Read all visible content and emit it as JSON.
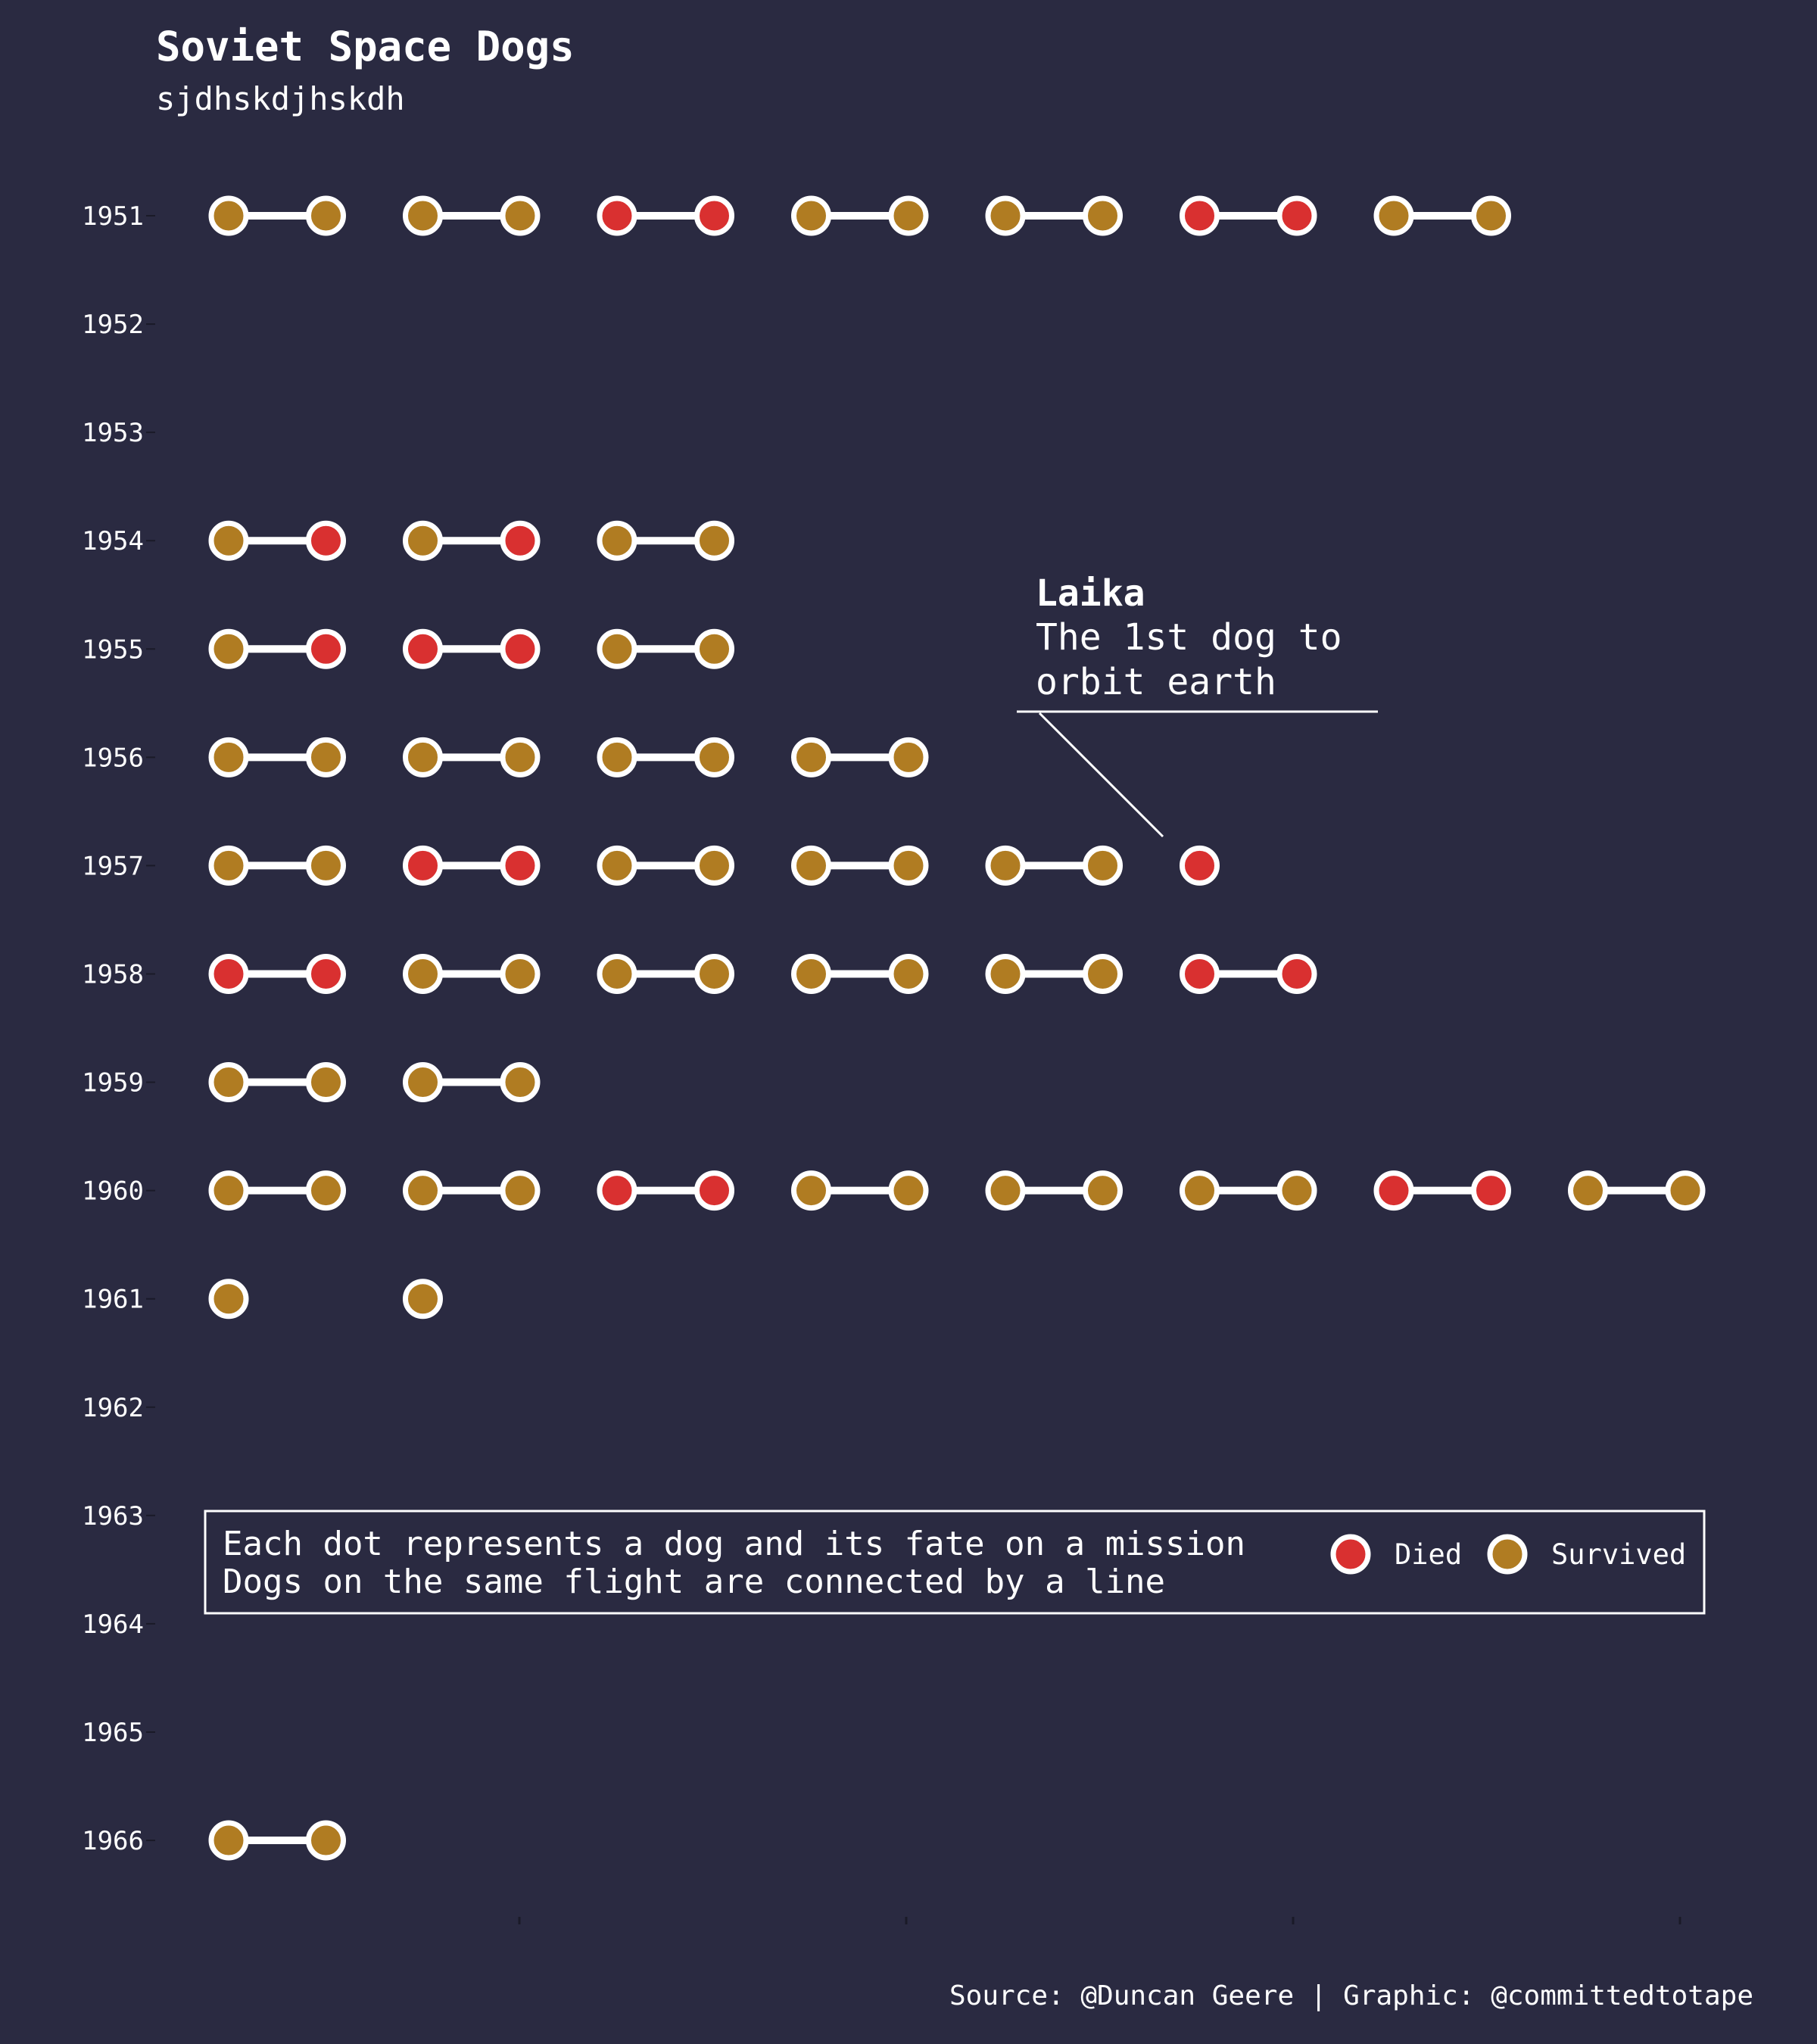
{
  "title": "Soviet Space Dogs",
  "subtitle": "sjdhskdjhskdh",
  "caption": "Source: @Duncan Geere | Graphic: @committedtotape",
  "colors": {
    "background": "#2a2a41",
    "died": "#d93030",
    "survived": "#b07c22",
    "outline": "#ffffff",
    "text": "#ffffff"
  },
  "annotation": {
    "title": "Laika",
    "line1": "The 1st dog to",
    "line2": "orbit earth",
    "target": {
      "year": 1957,
      "flight": 6,
      "dog": 0
    }
  },
  "legend": {
    "line1": "Each dot represents a dog and its fate on a mission",
    "line2": "Dogs on the same flight are connected by a line",
    "died_label": "Died",
    "survived_label": "Survived"
  },
  "chart_data": {
    "type": "scatter",
    "y_label": "",
    "x_label": "",
    "years": [
      1951,
      1952,
      1953,
      1954,
      1955,
      1956,
      1957,
      1958,
      1959,
      1960,
      1961,
      1962,
      1963,
      1964,
      1965,
      1966
    ],
    "flights_by_year": {
      "1951": [
        [
          "S",
          "S"
        ],
        [
          "S",
          "S"
        ],
        [
          "D",
          "D"
        ],
        [
          "S",
          "S"
        ],
        [
          "S",
          "S"
        ],
        [
          "D",
          "D"
        ],
        [
          "S",
          "S"
        ]
      ],
      "1952": [],
      "1953": [],
      "1954": [
        [
          "S",
          "D"
        ],
        [
          "S",
          "D"
        ],
        [
          "S",
          "S"
        ]
      ],
      "1955": [
        [
          "S",
          "D"
        ],
        [
          "D",
          "D"
        ],
        [
          "S",
          "S"
        ]
      ],
      "1956": [
        [
          "S",
          "S"
        ],
        [
          "S",
          "S"
        ],
        [
          "S",
          "S"
        ],
        [
          "S",
          "S"
        ]
      ],
      "1957": [
        [
          "S",
          "S"
        ],
        [
          "D",
          "D"
        ],
        [
          "S",
          "S"
        ],
        [
          "S",
          "S"
        ],
        [
          "S",
          "S"
        ],
        [
          "D"
        ]
      ],
      "1958": [
        [
          "D",
          "D"
        ],
        [
          "S",
          "S"
        ],
        [
          "S",
          "S"
        ],
        [
          "S",
          "S"
        ],
        [
          "S",
          "S"
        ],
        [
          "D",
          "D"
        ]
      ],
      "1959": [
        [
          "S",
          "S"
        ],
        [
          "S",
          "S"
        ]
      ],
      "1960": [
        [
          "S",
          "S"
        ],
        [
          "S",
          "S"
        ],
        [
          "D",
          "D"
        ],
        [
          "S",
          "S"
        ],
        [
          "S",
          "S"
        ],
        [
          "S",
          "S"
        ],
        [
          "D",
          "D"
        ],
        [
          "S",
          "S"
        ]
      ],
      "1961": [
        [
          "S"
        ],
        [
          "S"
        ]
      ],
      "1962": [],
      "1963": [],
      "1964": [],
      "1965": [],
      "1966": [
        [
          "S",
          "S"
        ]
      ]
    },
    "fate_codes": {
      "D": "Died",
      "S": "Survived"
    },
    "legend": [
      "Died",
      "Survived"
    ],
    "grid": false
  }
}
